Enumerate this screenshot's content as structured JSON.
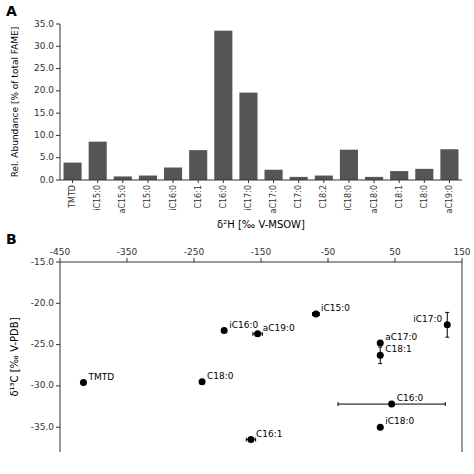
{
  "chart_data": [
    {
      "type": "bar",
      "title": "A",
      "categories": [
        "TMTD",
        "iC15:0",
        "aC15:0",
        "C15:0",
        "iC16:0",
        "C16:1",
        "C16:0",
        "iC17:0",
        "aC17:0",
        "C17:0",
        "C18:2",
        "iC18:0",
        "aC18:0",
        "C18:1",
        "C18:0",
        "aC19:0"
      ],
      "values": [
        3.9,
        8.6,
        0.8,
        1.0,
        2.8,
        6.7,
        33.5,
        19.6,
        2.3,
        0.7,
        1.0,
        6.8,
        0.7,
        2.0,
        2.5,
        6.9
      ],
      "color": "#555555",
      "ylabel": "Rel. Abundance [% of total FAME]",
      "xlabel": "δ²H [‰ V-MSOW]",
      "ylim": [
        0,
        35.0
      ],
      "yticks": [
        {
          "value": 0.0,
          "label": "0.0"
        },
        {
          "value": 5.0,
          "label": "5.0"
        },
        {
          "value": 10.0,
          "label": "10.0"
        },
        {
          "value": 15.0,
          "label": "15.0"
        },
        {
          "value": 20.0,
          "label": "20.0"
        },
        {
          "value": 25.0,
          "label": "25.0"
        },
        {
          "value": 30.0,
          "label": "30.0"
        },
        {
          "value": 35.0,
          "label": "35.0"
        }
      ],
      "grid": false
    },
    {
      "type": "scatter",
      "title": "B",
      "labels": [
        "TMTD",
        "iC15:0",
        "iC16:0",
        "C18:0",
        "aC19:0",
        "aC17:0",
        "C18:1",
        "iC17:0",
        "C16:0",
        "iC18:0",
        "C16:1"
      ],
      "x": [
        -415,
        -68,
        -205,
        -238,
        -155,
        28,
        28,
        128,
        45,
        28,
        -165
      ],
      "y": [
        -29.6,
        -21.3,
        -23.3,
        -29.5,
        -23.7,
        -24.8,
        -26.3,
        -22.6,
        -32.2,
        -35.0,
        -36.5
      ],
      "x_err": [
        0,
        5,
        0,
        0,
        7,
        0,
        0,
        0,
        80,
        0,
        7
      ],
      "y_err": [
        0,
        0,
        0,
        0,
        0,
        0,
        1.0,
        1.5,
        0,
        0,
        0
      ],
      "color": "#000000",
      "marker": "circle",
      "ylabel": "δ¹³C [‰ V-PDB]",
      "xlim": [
        -450,
        150
      ],
      "ylim": [
        -38.0,
        -15.0
      ],
      "xticks": [
        -450,
        -350,
        -250,
        -150,
        -50,
        50,
        150
      ],
      "yticks": [
        {
          "value": -15.0,
          "label": "-15.0"
        },
        {
          "value": -20.0,
          "label": "-20.0"
        },
        {
          "value": -25.0,
          "label": "-25.0"
        },
        {
          "value": -30.0,
          "label": "-30.0"
        },
        {
          "value": -35.0,
          "label": "-35.0"
        }
      ],
      "grid": false
    }
  ]
}
